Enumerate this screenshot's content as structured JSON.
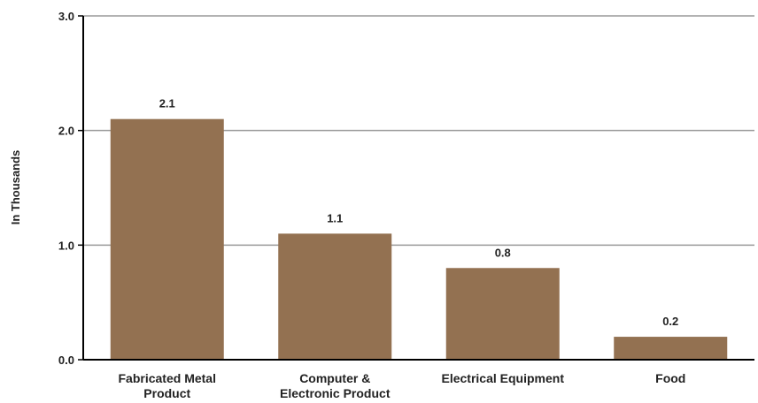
{
  "chart_data": {
    "type": "bar",
    "title": "",
    "xlabel": "",
    "ylabel": "In Thousands",
    "categories": [
      [
        "Fabricated Metal",
        "Product"
      ],
      [
        "Computer &",
        "Electronic Product"
      ],
      [
        "Electrical Equipment"
      ],
      [
        "Food"
      ]
    ],
    "values": [
      2.1,
      1.1,
      0.8,
      0.2
    ],
    "value_labels": [
      "2.1",
      "1.1",
      "0.8",
      "0.2"
    ],
    "ylim": [
      0,
      3.0
    ],
    "yticks": [
      0,
      1.0,
      2.0,
      3.0
    ],
    "ytick_labels": [
      "0.0",
      "1.0",
      "2.0",
      "3.0"
    ],
    "grid": true,
    "legend": "none",
    "colors": {
      "bar": "#937151",
      "grid": "#9a9a9a",
      "axis": "#000000",
      "text": "#222222"
    }
  }
}
